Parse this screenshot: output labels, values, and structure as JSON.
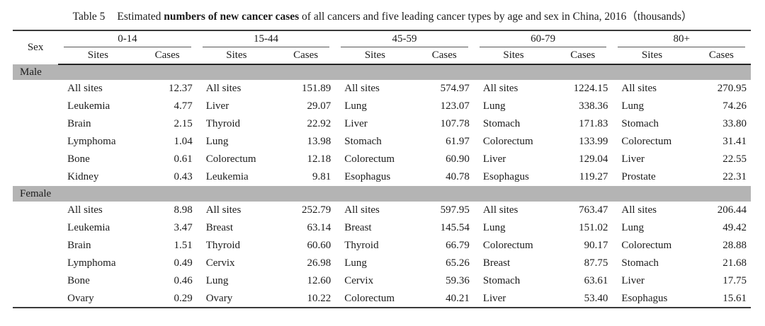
{
  "title": {
    "table_label": "Table 5",
    "text_before_bold": "Estimated ",
    "bold_text": "numbers of new cancer cases",
    "text_after_bold": " of all cancers and five leading cancer types by age and sex in China, 2016（thousands）"
  },
  "table": {
    "colors": {
      "band_background": "#b4b4b4",
      "rule_color": "#3a3a3a",
      "text_color": "#1c1c1c"
    },
    "header": {
      "sex_label": "Sex",
      "age_groups": [
        "0-14",
        "15-44",
        "45-59",
        "60-79",
        "80+"
      ],
      "sites_label": "Sites",
      "cases_label": "Cases"
    },
    "sections": [
      {
        "sex": "Male",
        "rows": [
          {
            "g0s": "All sites",
            "g0c": "12.37",
            "g1s": "All sites",
            "g1c": "151.89",
            "g2s": "All sites",
            "g2c": "574.97",
            "g3s": "All sites",
            "g3c": "1224.15",
            "g4s": "All sites",
            "g4c": "270.95"
          },
          {
            "g0s": "Leukemia",
            "g0c": "4.77",
            "g1s": "Liver",
            "g1c": "29.07",
            "g2s": "Lung",
            "g2c": "123.07",
            "g3s": "Lung",
            "g3c": "338.36",
            "g4s": "Lung",
            "g4c": "74.26"
          },
          {
            "g0s": "Brain",
            "g0c": "2.15",
            "g1s": "Thyroid",
            "g1c": "22.92",
            "g2s": "Liver",
            "g2c": "107.78",
            "g3s": "Stomach",
            "g3c": "171.83",
            "g4s": "Stomach",
            "g4c": "33.80"
          },
          {
            "g0s": "Lymphoma",
            "g0c": "1.04",
            "g1s": "Lung",
            "g1c": "13.98",
            "g2s": "Stomach",
            "g2c": "61.97",
            "g3s": "Colorectum",
            "g3c": "133.99",
            "g4s": "Colorectum",
            "g4c": "31.41"
          },
          {
            "g0s": "Bone",
            "g0c": "0.61",
            "g1s": "Colorectum",
            "g1c": "12.18",
            "g2s": "Colorectum",
            "g2c": "60.90",
            "g3s": "Liver",
            "g3c": "129.04",
            "g4s": "Liver",
            "g4c": "22.55"
          },
          {
            "g0s": "Kidney",
            "g0c": "0.43",
            "g1s": "Leukemia",
            "g1c": "9.81",
            "g2s": "Esophagus",
            "g2c": "40.78",
            "g3s": "Esophagus",
            "g3c": "119.27",
            "g4s": "Prostate",
            "g4c": "22.31"
          }
        ]
      },
      {
        "sex": "Female",
        "rows": [
          {
            "g0s": "All sites",
            "g0c": "8.98",
            "g1s": "All sites",
            "g1c": "252.79",
            "g2s": "All sites",
            "g2c": "597.95",
            "g3s": "All sites",
            "g3c": "763.47",
            "g4s": "All sites",
            "g4c": "206.44"
          },
          {
            "g0s": "Leukemia",
            "g0c": "3.47",
            "g1s": "Breast",
            "g1c": "63.14",
            "g2s": "Breast",
            "g2c": "145.54",
            "g3s": "Lung",
            "g3c": "151.02",
            "g4s": "Lung",
            "g4c": "49.42"
          },
          {
            "g0s": "Brain",
            "g0c": "1.51",
            "g1s": "Thyroid",
            "g1c": "60.60",
            "g2s": "Thyroid",
            "g2c": "66.79",
            "g3s": "Colorectum",
            "g3c": "90.17",
            "g4s": "Colorectum",
            "g4c": "28.88"
          },
          {
            "g0s": "Lymphoma",
            "g0c": "0.49",
            "g1s": "Cervix",
            "g1c": "26.98",
            "g2s": "Lung",
            "g2c": "65.26",
            "g3s": "Breast",
            "g3c": "87.75",
            "g4s": "Stomach",
            "g4c": "21.68"
          },
          {
            "g0s": "Bone",
            "g0c": "0.46",
            "g1s": "Lung",
            "g1c": "12.60",
            "g2s": "Cervix",
            "g2c": "59.36",
            "g3s": "Stomach",
            "g3c": "63.61",
            "g4s": "Liver",
            "g4c": "17.75"
          },
          {
            "g0s": "Ovary",
            "g0c": "0.29",
            "g1s": "Ovary",
            "g1c": "10.22",
            "g2s": "Colorectum",
            "g2c": "40.21",
            "g3s": "Liver",
            "g3c": "53.40",
            "g4s": "Esophagus",
            "g4c": "15.61"
          }
        ]
      }
    ]
  }
}
